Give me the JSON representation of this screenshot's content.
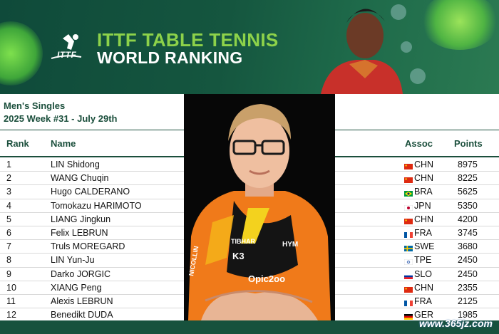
{
  "banner": {
    "logo_text": "ITTF",
    "title_line1": "ITTF TABLE TENNIS",
    "title_line2": "WORLD RANKING"
  },
  "subtitle": {
    "category": "Men's Singles",
    "week": "2025 Week #31 - July 29th"
  },
  "table": {
    "headers": {
      "rank": "Rank",
      "name": "Name",
      "assoc": "Assoc",
      "points": "Points"
    },
    "rows": [
      {
        "rank": "1",
        "name": "LIN Shidong",
        "assoc": "CHN",
        "points": "8975",
        "flag": "chn"
      },
      {
        "rank": "2",
        "name": "WANG Chuqin",
        "assoc": "CHN",
        "points": "8225",
        "flag": "chn"
      },
      {
        "rank": "3",
        "name": "Hugo CALDERANO",
        "assoc": "BRA",
        "points": "5625",
        "flag": "bra"
      },
      {
        "rank": "4",
        "name": "Tomokazu HARIMOTO",
        "assoc": "JPN",
        "points": "5350",
        "flag": "jpn"
      },
      {
        "rank": "5",
        "name": "LIANG Jingkun",
        "assoc": "CHN",
        "points": "4200",
        "flag": "chn"
      },
      {
        "rank": "6",
        "name": "Felix LEBRUN",
        "assoc": "FRA",
        "points": "3745",
        "flag": "fra"
      },
      {
        "rank": "7",
        "name": "Truls MOREGARD",
        "assoc": "SWE",
        "points": "3680",
        "flag": "swe"
      },
      {
        "rank": "8",
        "name": "LIN Yun-Ju",
        "assoc": "TPE",
        "points": "2450",
        "flag": "tpe"
      },
      {
        "rank": "9",
        "name": "Darko JORGIC",
        "assoc": "SLO",
        "points": "2450",
        "flag": "slo"
      },
      {
        "rank": "10",
        "name": "XIANG Peng",
        "assoc": "CHN",
        "points": "2355",
        "flag": "chn"
      },
      {
        "rank": "11",
        "name": "Alexis LEBRUN",
        "assoc": "FRA",
        "points": "2125",
        "flag": "fra"
      },
      {
        "rank": "12",
        "name": "Benedikt DUDA",
        "assoc": "GER",
        "points": "1985",
        "flag": "ger"
      }
    ]
  },
  "photo": {
    "jersey_brand": "TIBHAR",
    "jersey_sponsor_left": "NICOLLIN",
    "jersey_sponsor_chest": "Opic2oo",
    "jersey_badge": "HYM",
    "jersey_logo": "K3"
  },
  "watermark": "www.365jz.com",
  "colors": {
    "brand_dark": "#17523d",
    "brand_green": "#8dd24a",
    "text_green": "#1b4f3c"
  }
}
